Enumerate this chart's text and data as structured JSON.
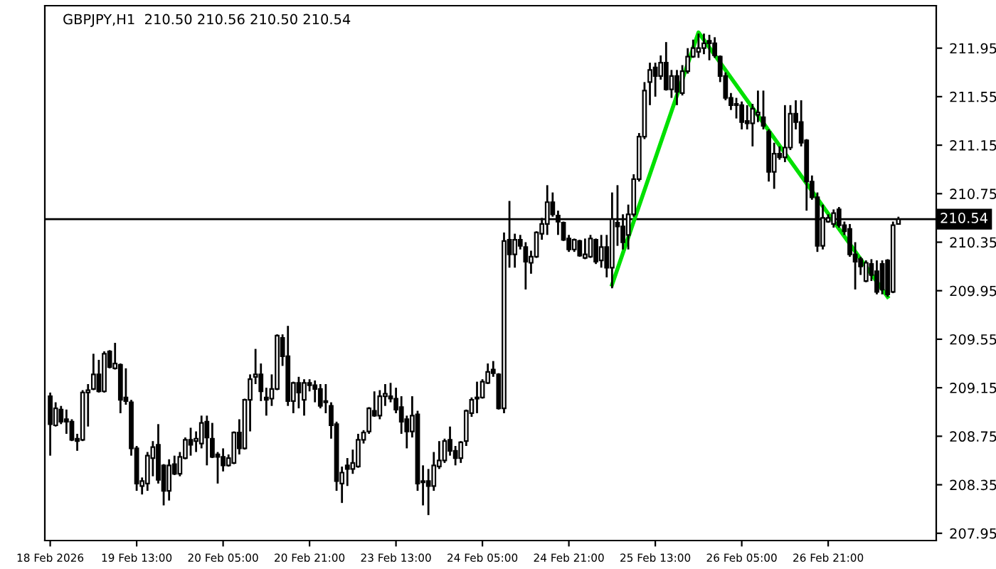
{
  "chart_data": {
    "type": "candlestick",
    "title": "GBPJPY,H1  210.50 210.56 210.50 210.54",
    "categories": [
      "18 Feb 2026",
      null,
      null,
      null,
      null,
      null,
      null,
      null,
      null,
      null,
      null,
      null,
      null,
      null,
      null,
      null,
      "19 Feb 13:00",
      null,
      null,
      null,
      null,
      null,
      null,
      null,
      null,
      null,
      null,
      null,
      null,
      null,
      null,
      null,
      "20 Feb 05:00",
      null,
      null,
      null,
      null,
      null,
      null,
      null,
      null,
      null,
      null,
      null,
      null,
      null,
      null,
      null,
      "20 Feb 21:00",
      null,
      null,
      null,
      null,
      null,
      null,
      null,
      null,
      null,
      null,
      null,
      null,
      null,
      null,
      null,
      "23 Feb 13:00",
      null,
      null,
      null,
      null,
      null,
      null,
      null,
      null,
      null,
      null,
      null,
      null,
      null,
      null,
      null,
      "24 Feb 05:00",
      null,
      null,
      null,
      null,
      null,
      null,
      null,
      null,
      null,
      null,
      null,
      null,
      null,
      null,
      null,
      "24 Feb 21:00",
      null,
      null,
      null,
      null,
      null,
      null,
      null,
      null,
      null,
      null,
      null,
      null,
      null,
      null,
      null,
      "25 Feb 13:00",
      null,
      null,
      null,
      null,
      null,
      null,
      null,
      null,
      null,
      null,
      null,
      null,
      null,
      null,
      null,
      "26 Feb 05:00",
      null,
      null,
      null,
      null,
      null,
      null,
      null,
      null,
      null,
      null,
      null,
      null,
      null,
      null,
      null,
      "26 Feb 21:00",
      null,
      null,
      null,
      null,
      null,
      null,
      null,
      null,
      null,
      null,
      null,
      null,
      null
    ],
    "ohlc": [
      [
        209.08,
        209.11,
        208.59,
        208.85
      ],
      [
        208.84,
        209.03,
        208.83,
        208.98
      ],
      [
        208.97,
        209.0,
        208.85,
        208.87
      ],
      [
        208.89,
        208.97,
        208.77,
        208.87
      ],
      [
        208.87,
        208.89,
        208.71,
        208.72
      ],
      [
        208.73,
        208.77,
        208.63,
        208.71
      ],
      [
        208.72,
        209.13,
        208.71,
        209.11
      ],
      [
        209.11,
        209.18,
        208.83,
        209.13
      ],
      [
        209.14,
        209.43,
        209.13,
        209.26
      ],
      [
        209.26,
        209.38,
        209.11,
        209.12
      ],
      [
        209.12,
        209.45,
        209.11,
        209.43
      ],
      [
        209.45,
        209.46,
        209.31,
        209.32
      ],
      [
        209.31,
        209.52,
        209.3,
        209.35
      ],
      [
        209.34,
        209.35,
        208.94,
        209.05
      ],
      [
        209.07,
        209.31,
        209.01,
        209.04
      ],
      [
        209.03,
        209.05,
        208.59,
        208.65
      ],
      [
        208.65,
        208.67,
        208.3,
        208.36
      ],
      [
        208.34,
        208.41,
        208.27,
        208.38
      ],
      [
        208.36,
        208.62,
        208.3,
        208.59
      ],
      [
        208.57,
        208.71,
        208.42,
        208.66
      ],
      [
        208.68,
        208.85,
        208.36,
        208.39
      ],
      [
        208.51,
        208.52,
        208.18,
        208.3
      ],
      [
        208.3,
        208.56,
        208.22,
        208.51
      ],
      [
        208.52,
        208.59,
        208.43,
        208.44
      ],
      [
        208.44,
        208.62,
        208.42,
        208.58
      ],
      [
        208.57,
        208.74,
        208.56,
        208.72
      ],
      [
        208.72,
        208.82,
        208.59,
        208.68
      ],
      [
        208.71,
        208.79,
        208.62,
        208.73
      ],
      [
        208.69,
        208.92,
        208.65,
        208.86
      ],
      [
        208.87,
        208.92,
        208.51,
        208.74
      ],
      [
        208.73,
        208.86,
        208.57,
        208.58
      ],
      [
        208.6,
        208.62,
        208.36,
        208.58
      ],
      [
        208.58,
        208.65,
        208.46,
        208.51
      ],
      [
        208.51,
        208.6,
        208.5,
        208.57
      ],
      [
        208.53,
        208.79,
        208.52,
        208.78
      ],
      [
        208.78,
        208.89,
        208.6,
        208.65
      ],
      [
        208.65,
        209.06,
        208.64,
        209.05
      ],
      [
        209.05,
        209.26,
        208.79,
        209.22
      ],
      [
        209.24,
        209.47,
        209.18,
        209.26
      ],
      [
        209.26,
        209.35,
        209.04,
        209.12
      ],
      [
        209.07,
        209.15,
        208.92,
        209.05
      ],
      [
        209.06,
        209.26,
        209.0,
        209.14
      ],
      [
        209.14,
        209.59,
        209.13,
        209.58
      ],
      [
        209.56,
        209.59,
        209.33,
        209.41
      ],
      [
        209.41,
        209.66,
        209.0,
        209.04
      ],
      [
        209.04,
        209.2,
        208.94,
        209.19
      ],
      [
        209.19,
        209.24,
        208.98,
        209.11
      ],
      [
        209.05,
        209.22,
        208.92,
        209.19
      ],
      [
        209.19,
        209.22,
        209.12,
        209.17
      ],
      [
        209.17,
        209.21,
        209.03,
        209.14
      ],
      [
        209.14,
        209.18,
        208.98,
        209.0
      ],
      [
        209.04,
        209.18,
        208.94,
        209.03
      ],
      [
        209.0,
        209.03,
        208.73,
        208.84
      ],
      [
        208.85,
        208.87,
        208.3,
        208.38
      ],
      [
        208.36,
        208.5,
        208.2,
        208.45
      ],
      [
        208.51,
        208.57,
        208.34,
        208.48
      ],
      [
        208.48,
        208.64,
        208.44,
        208.53
      ],
      [
        208.5,
        208.77,
        208.49,
        208.72
      ],
      [
        208.72,
        208.8,
        208.69,
        208.78
      ],
      [
        208.79,
        208.99,
        208.77,
        208.98
      ],
      [
        208.96,
        209.12,
        208.91,
        208.92
      ],
      [
        208.92,
        209.13,
        208.89,
        209.08
      ],
      [
        209.08,
        209.18,
        209.0,
        209.1
      ],
      [
        209.08,
        209.19,
        209.03,
        209.06
      ],
      [
        209.06,
        209.15,
        208.94,
        208.97
      ],
      [
        208.99,
        209.08,
        208.77,
        208.87
      ],
      [
        208.89,
        208.92,
        208.65,
        208.79
      ],
      [
        208.79,
        209.08,
        208.74,
        208.92
      ],
      [
        208.93,
        208.96,
        208.3,
        208.36
      ],
      [
        208.38,
        208.51,
        208.18,
        208.37
      ],
      [
        208.38,
        208.48,
        208.1,
        208.34
      ],
      [
        208.34,
        208.62,
        208.3,
        208.51
      ],
      [
        208.5,
        208.71,
        208.48,
        208.55
      ],
      [
        208.55,
        208.73,
        208.53,
        208.71
      ],
      [
        208.72,
        208.83,
        208.59,
        208.63
      ],
      [
        208.63,
        208.67,
        208.51,
        208.57
      ],
      [
        208.57,
        208.71,
        208.53,
        208.7
      ],
      [
        208.71,
        208.97,
        208.67,
        208.96
      ],
      [
        208.94,
        209.07,
        208.91,
        209.05
      ],
      [
        209.07,
        209.2,
        208.94,
        209.06
      ],
      [
        209.07,
        209.22,
        209.06,
        209.2
      ],
      [
        209.19,
        209.35,
        209.18,
        209.28
      ],
      [
        209.3,
        209.37,
        209.24,
        209.27
      ],
      [
        209.26,
        209.27,
        208.97,
        208.98
      ],
      [
        208.98,
        210.43,
        208.94,
        210.36
      ],
      [
        210.37,
        210.69,
        210.14,
        210.25
      ],
      [
        210.25,
        210.42,
        210.14,
        210.37
      ],
      [
        210.37,
        210.41,
        210.29,
        210.32
      ],
      [
        210.31,
        210.35,
        209.96,
        210.19
      ],
      [
        210.18,
        210.28,
        210.09,
        210.23
      ],
      [
        210.23,
        210.44,
        210.22,
        210.43
      ],
      [
        210.42,
        210.55,
        210.37,
        210.5
      ],
      [
        210.5,
        210.82,
        210.41,
        210.68
      ],
      [
        210.68,
        210.76,
        210.56,
        210.58
      ],
      [
        210.57,
        210.61,
        210.41,
        210.52
      ],
      [
        210.51,
        210.52,
        210.36,
        210.37
      ],
      [
        210.38,
        210.41,
        210.27,
        210.29
      ],
      [
        210.29,
        210.38,
        210.27,
        210.37
      ],
      [
        210.36,
        210.37,
        210.23,
        210.24
      ],
      [
        210.22,
        210.38,
        210.21,
        210.25
      ],
      [
        210.23,
        210.41,
        210.22,
        210.38
      ],
      [
        210.37,
        210.38,
        210.17,
        210.19
      ],
      [
        210.2,
        210.41,
        210.14,
        210.31
      ],
      [
        210.31,
        210.41,
        210.06,
        210.14
      ],
      [
        210.14,
        210.76,
        209.97,
        210.54
      ],
      [
        210.51,
        210.82,
        210.32,
        210.48
      ],
      [
        210.48,
        210.58,
        210.29,
        210.35
      ],
      [
        210.41,
        210.66,
        210.29,
        210.58
      ],
      [
        210.58,
        210.91,
        210.56,
        210.87
      ],
      [
        210.87,
        211.25,
        210.85,
        211.22
      ],
      [
        211.22,
        211.67,
        211.2,
        211.6
      ],
      [
        211.67,
        211.83,
        211.48,
        211.77
      ],
      [
        211.79,
        211.83,
        211.55,
        211.72
      ],
      [
        211.72,
        211.89,
        211.69,
        211.83
      ],
      [
        211.83,
        212.0,
        211.6,
        211.61
      ],
      [
        211.61,
        211.77,
        211.54,
        211.72
      ],
      [
        211.72,
        211.77,
        211.48,
        211.59
      ],
      [
        211.58,
        211.81,
        211.56,
        211.76
      ],
      [
        211.76,
        211.95,
        211.74,
        211.88
      ],
      [
        211.88,
        212.02,
        211.87,
        211.95
      ],
      [
        211.92,
        212.07,
        211.87,
        211.95
      ],
      [
        211.95,
        212.07,
        211.9,
        211.99
      ],
      [
        212.01,
        212.06,
        211.85,
        211.99
      ],
      [
        211.99,
        212.04,
        211.87,
        211.89
      ],
      [
        211.88,
        211.89,
        211.67,
        211.72
      ],
      [
        211.72,
        211.75,
        211.52,
        211.54
      ],
      [
        211.54,
        211.58,
        211.44,
        211.48
      ],
      [
        211.49,
        211.54,
        211.37,
        211.48
      ],
      [
        211.48,
        211.51,
        211.28,
        211.34
      ],
      [
        211.35,
        211.48,
        211.28,
        211.33
      ],
      [
        211.33,
        211.49,
        211.14,
        211.45
      ],
      [
        211.4,
        211.6,
        211.34,
        211.42
      ],
      [
        211.38,
        211.6,
        211.28,
        211.31
      ],
      [
        211.26,
        211.28,
        210.85,
        210.93
      ],
      [
        210.93,
        211.17,
        210.79,
        211.08
      ],
      [
        211.08,
        211.14,
        211.03,
        211.05
      ],
      [
        211.05,
        211.48,
        211.01,
        211.13
      ],
      [
        211.13,
        211.48,
        211.11,
        211.41
      ],
      [
        211.41,
        211.52,
        211.28,
        211.34
      ],
      [
        211.34,
        211.52,
        211.14,
        211.17
      ],
      [
        211.19,
        211.2,
        210.61,
        210.85
      ],
      [
        210.85,
        210.9,
        210.7,
        210.72
      ],
      [
        210.72,
        210.76,
        210.27,
        210.32
      ],
      [
        210.32,
        210.66,
        210.29,
        210.55
      ],
      [
        210.52,
        210.58,
        210.51,
        210.55
      ],
      [
        210.5,
        210.62,
        210.47,
        210.59
      ],
      [
        210.62,
        210.64,
        210.47,
        210.49
      ],
      [
        210.49,
        210.52,
        210.41,
        210.44
      ],
      [
        210.46,
        210.5,
        210.23,
        210.25
      ],
      [
        210.25,
        210.35,
        209.96,
        210.19
      ],
      [
        210.21,
        210.23,
        210.08,
        210.15
      ],
      [
        210.03,
        210.2,
        210.02,
        210.18
      ],
      [
        210.17,
        210.21,
        210.03,
        210.08
      ],
      [
        210.11,
        210.2,
        209.92,
        209.94
      ],
      [
        210.17,
        210.2,
        209.92,
        209.96
      ],
      [
        210.2,
        210.21,
        209.9,
        209.92
      ],
      [
        209.94,
        210.52,
        209.93,
        210.49
      ],
      [
        210.5,
        210.56,
        210.5,
        210.54
      ]
    ],
    "series": [
      {
        "type": "line",
        "color": "#00e000",
        "values": [
          null,
          null,
          null,
          null,
          null,
          null,
          null,
          null,
          null,
          null,
          null,
          null,
          null,
          null,
          null,
          null,
          null,
          null,
          null,
          null,
          null,
          null,
          null,
          null,
          null,
          null,
          null,
          null,
          null,
          null,
          null,
          null,
          null,
          null,
          null,
          null,
          null,
          null,
          null,
          null,
          null,
          null,
          null,
          null,
          null,
          null,
          null,
          null,
          null,
          null,
          null,
          null,
          null,
          null,
          null,
          null,
          null,
          null,
          null,
          null,
          null,
          null,
          null,
          null,
          null,
          null,
          null,
          null,
          null,
          null,
          null,
          null,
          null,
          null,
          null,
          null,
          null,
          null,
          null,
          null,
          null,
          null,
          null,
          null,
          null,
          null,
          null,
          null,
          null,
          null,
          null,
          null,
          null,
          null,
          null,
          null,
          null,
          null,
          null,
          null,
          null,
          null,
          null,
          null,
          210.0,
          null,
          null,
          null,
          null,
          null,
          null,
          null,
          null,
          null,
          null,
          null,
          null,
          null,
          null,
          null,
          212.08,
          null,
          null,
          null,
          null,
          null,
          null,
          null,
          null,
          null,
          null,
          null,
          null,
          null,
          null,
          null,
          null,
          null,
          null,
          null,
          null,
          null,
          null,
          null,
          null,
          null,
          null,
          null,
          null,
          null,
          null,
          null,
          null,
          null,
          null,
          209.9,
          null,
          null
        ]
      }
    ],
    "ylim": [
      207.89,
      212.3
    ],
    "yticks": [
      207.95,
      208.35,
      208.75,
      209.15,
      209.55,
      209.95,
      210.35,
      210.75,
      211.15,
      211.55,
      211.95
    ],
    "ref_lines": [
      {
        "axis": "y",
        "value": 210.54,
        "label": "210.54",
        "color": "#000000"
      }
    ],
    "grid": false,
    "legend": false
  }
}
